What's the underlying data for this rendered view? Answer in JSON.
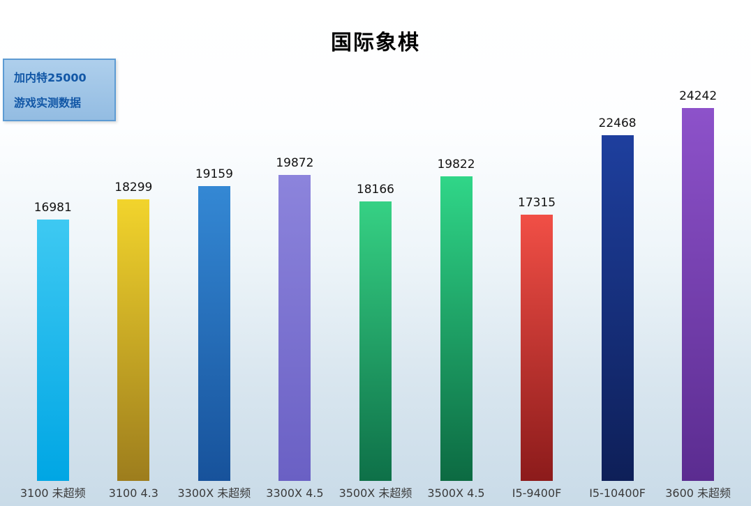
{
  "title": "国际象棋",
  "legend": {
    "line1": "加内特25000",
    "line2": "游戏实测数据"
  },
  "chart_data": {
    "type": "bar",
    "title": "国际象棋",
    "categories": [
      "3100 未超频",
      "3100 4.3",
      "3300X 未超频",
      "3300X 4.5",
      "3500X 未超频",
      "3500X 4.5",
      "I5-9400F",
      "I5-10400F",
      "3600 未超频"
    ],
    "values": [
      16981,
      18299,
      19159,
      19872,
      18166,
      19822,
      17315,
      22468,
      24242
    ],
    "xlabel": "",
    "ylabel": "",
    "ylim": [
      0,
      25000
    ],
    "grid": false,
    "legend_position": "top-left",
    "value_labels_shown": true,
    "bar_gradients": [
      [
        "#3ec9f2",
        "#00a6e4"
      ],
      [
        "#f2d42c",
        "#9d7d1d"
      ],
      [
        "#3488d4",
        "#17529b"
      ],
      [
        "#8c84dc",
        "#6a60c4"
      ],
      [
        "#36d184",
        "#0e7048"
      ],
      [
        "#30d688",
        "#0c6a42"
      ],
      [
        "#f14f46",
        "#8c1b1b"
      ],
      [
        "#1e3f9e",
        "#0e1f58"
      ],
      [
        "#8d52ca",
        "#5b2c90"
      ]
    ],
    "colors": {
      "title_text": "#000000",
      "value_label_text": "#111111",
      "category_label_text": "#3a3a3a",
      "legend_text": "#1257a6",
      "legend_background": "#9fc4e8",
      "legend_border": "#5d9bd3",
      "background_top": "#ffffff",
      "background_bottom": "#c9dbe8"
    }
  }
}
